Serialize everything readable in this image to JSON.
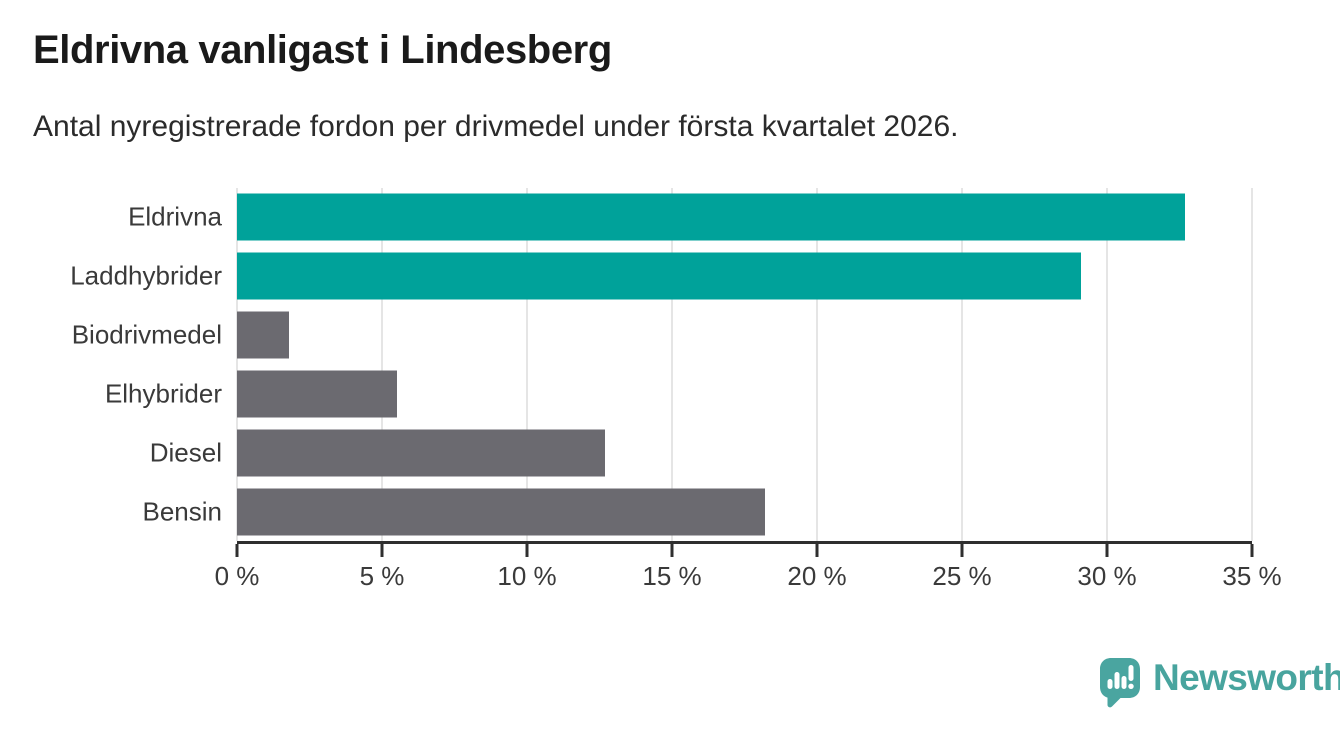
{
  "header": {
    "title": "Eldrivna vanligast i Lindesberg",
    "subtitle": "Antal nyregistrerade fordon per drivmedel under första kvartalet 2026."
  },
  "chart_data": {
    "type": "bar",
    "orientation": "horizontal",
    "title": "Eldrivna vanligast i Lindesberg",
    "subtitle": "Antal nyregistrerade fordon per drivmedel under första kvartalet 2026.",
    "categories": [
      "Eldrivna",
      "Laddhybrider",
      "Biodrivmedel",
      "Elhybrider",
      "Diesel",
      "Bensin"
    ],
    "values": [
      32.7,
      29.1,
      1.8,
      5.5,
      12.7,
      18.2
    ],
    "unit": "%",
    "xlim": [
      0,
      35
    ],
    "x_ticks": [
      0,
      5,
      10,
      15,
      20,
      25,
      30,
      35
    ],
    "x_tick_labels": [
      "0 %",
      "5 %",
      "10 %",
      "15 %",
      "20 %",
      "25 %",
      "30 %",
      "35 %"
    ],
    "highlight_indices": [
      0,
      1
    ],
    "colors": {
      "highlight": "#00a29a",
      "default": "#6b6a70",
      "gridline": "#e5e5e5",
      "axis": "#2f2f2f",
      "text": "#3a3a3a"
    },
    "grid": "vertical",
    "legend": "none",
    "ylabel": "",
    "xlabel": ""
  },
  "footer": {
    "brand": "Newsworthy",
    "brand_color": "#48a49e"
  }
}
